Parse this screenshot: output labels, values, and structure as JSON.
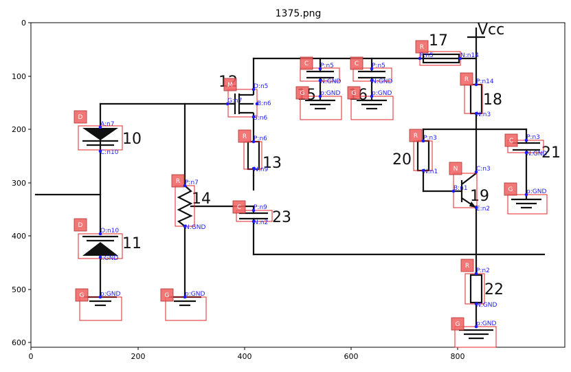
{
  "title": "1375.png",
  "x_ticks": [
    "0",
    "200",
    "400",
    "600",
    "800"
  ],
  "y_ticks": [
    "0",
    "100",
    "200",
    "300",
    "400",
    "500",
    "600"
  ],
  "labels": {
    "l10": "10",
    "l11": "11",
    "l12": "12",
    "l13": "13",
    "l14": "14",
    "l15": "15",
    "l16": "16",
    "l17": "17",
    "l18": "18",
    "l19": "19",
    "l20": "20",
    "l21": "21",
    "l22": "22",
    "l23": "23",
    "vcc": "Vcc"
  },
  "tags": [
    "D",
    "D",
    "G",
    "G",
    "R",
    "M",
    "R",
    "C",
    "C",
    "G",
    "C",
    "G",
    "R",
    "R",
    "R",
    "N",
    "C",
    "G",
    "R",
    "G"
  ],
  "pins": [
    "A:n7",
    "C:n10",
    "O:n10",
    "I:GND",
    "p:GND",
    "P:n7",
    "N:GND",
    "p:GND",
    "D:n5",
    "G:n7",
    "B:n6",
    "S:n6",
    "P:n6",
    "N:n9",
    "P:n9",
    "N:n2",
    "P:n5",
    "N:GND",
    "p:GND",
    "P:n5",
    "N:GND",
    "p:GND",
    "P:n5",
    "N:n14",
    "P:n14",
    "N:n3",
    "P:n3",
    "N:n1",
    "C:n3",
    "B:n1",
    "E:n2",
    "P:n3",
    "N:GND",
    "p:GND",
    "P:n2",
    "N:GND",
    "p:GND"
  ]
}
